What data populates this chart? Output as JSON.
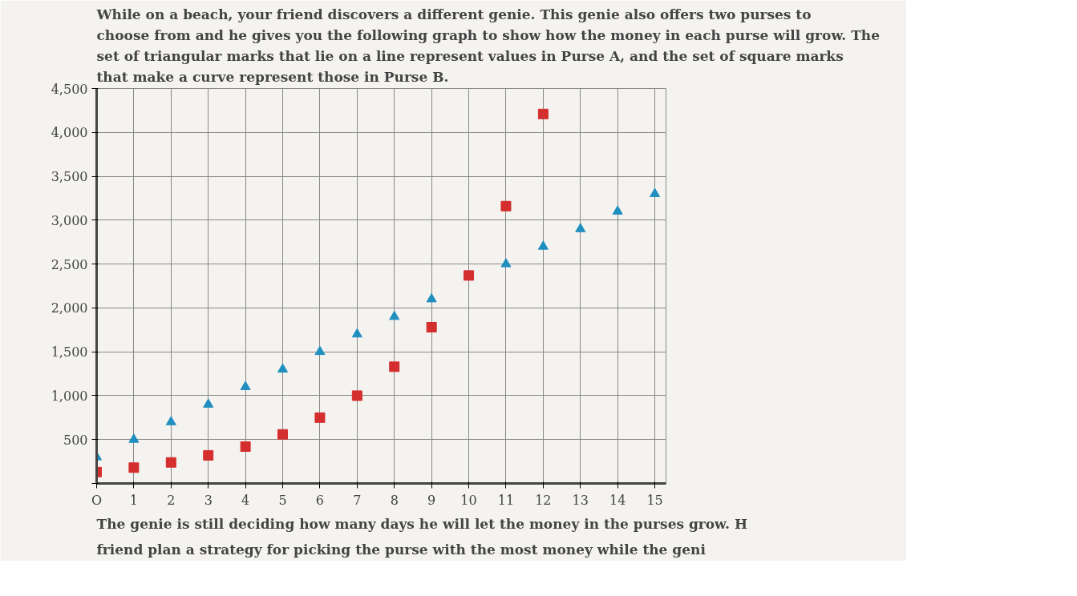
{
  "chart_data": {
    "type": "scatter",
    "title": "While on a beach, your friend discovers a different genie. This genie also offers two purses to choose from and he gives you the following graph to show how the money in each purse will grow. The set of triangular marks that lie on a line represent values in Purse A, and the set of square marks that make a curve represent those in Purse B.",
    "x": [
      0,
      1,
      2,
      3,
      4,
      5,
      6,
      7,
      8,
      9,
      10,
      11,
      12,
      13,
      14,
      15
    ],
    "series": [
      {
        "color": "#1f8fc0",
        "marker": "triangle",
        "values": [
          300,
          500,
          700,
          900,
          1100,
          1300,
          1500,
          1700,
          1900,
          2100,
          null,
          2500,
          2700,
          2900,
          3100,
          3300
        ]
      },
      {
        "color": "#d42e2e",
        "marker": "square",
        "values": [
          130,
          180,
          240,
          320,
          420,
          560,
          750,
          1000,
          1330,
          1780,
          2370,
          3160,
          4210,
          null,
          null,
          null
        ]
      }
    ],
    "xlim": [
      0,
      15.3
    ],
    "ylim": [
      0,
      4500
    ],
    "xticks": [
      {
        "value": 0,
        "label": "O"
      },
      1,
      2,
      3,
      4,
      5,
      6,
      7,
      8,
      9,
      10,
      11,
      12,
      13,
      14,
      15
    ],
    "yticks": [
      {
        "value": 0,
        "label": null
      },
      {
        "value": 500,
        "label": "500"
      },
      {
        "value": 1000,
        "label": "1,000"
      },
      {
        "value": 1500,
        "label": "1,500"
      },
      {
        "value": 2000,
        "label": "2,000"
      },
      {
        "value": 2500,
        "label": "2,500"
      },
      {
        "value": 3000,
        "label": "3,000"
      },
      {
        "value": 3500,
        "label": "3,500"
      },
      {
        "value": 4000,
        "label": "4,000"
      },
      {
        "value": 4500,
        "label": "4,500"
      }
    ],
    "grid": true,
    "annotations": [
      "The genie is still deciding how many days he will let the money in the purses grow. H",
      "friend plan a strategy for picking the purse with the most money while the geni"
    ]
  }
}
